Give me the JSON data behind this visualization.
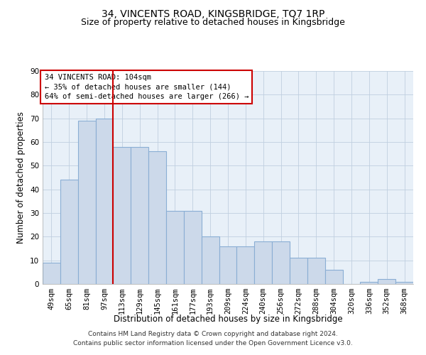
{
  "title": "34, VINCENTS ROAD, KINGSBRIDGE, TQ7 1RP",
  "subtitle": "Size of property relative to detached houses in Kingsbridge",
  "xlabel": "Distribution of detached houses by size in Kingsbridge",
  "ylabel": "Number of detached properties",
  "categories": [
    "49sqm",
    "65sqm",
    "81sqm",
    "97sqm",
    "113sqm",
    "129sqm",
    "145sqm",
    "161sqm",
    "177sqm",
    "193sqm",
    "209sqm",
    "224sqm",
    "240sqm",
    "256sqm",
    "272sqm",
    "288sqm",
    "304sqm",
    "320sqm",
    "336sqm",
    "352sqm",
    "368sqm"
  ],
  "values": [
    9,
    44,
    69,
    70,
    58,
    58,
    56,
    31,
    31,
    20,
    16,
    16,
    18,
    18,
    11,
    11,
    6,
    0,
    1,
    2,
    1
  ],
  "bar_color": "#ccd9ea",
  "bar_edge_color": "#8aaed4",
  "vline_color": "#cc0000",
  "annotation_text": "34 VINCENTS ROAD: 104sqm\n← 35% of detached houses are smaller (144)\n64% of semi-detached houses are larger (266) →",
  "annotation_box_color": "#ffffff",
  "annotation_box_edge_color": "#cc0000",
  "ylim": [
    0,
    90
  ],
  "yticks": [
    0,
    10,
    20,
    30,
    40,
    50,
    60,
    70,
    80,
    90
  ],
  "grid_color": "#c0cfe0",
  "background_color": "#e8f0f8",
  "footnote": "Contains HM Land Registry data © Crown copyright and database right 2024.\nContains public sector information licensed under the Open Government Licence v3.0.",
  "title_fontsize": 10,
  "subtitle_fontsize": 9,
  "xlabel_fontsize": 8.5,
  "ylabel_fontsize": 8.5,
  "tick_fontsize": 7.5,
  "annotation_fontsize": 7.5,
  "footnote_fontsize": 6.5
}
